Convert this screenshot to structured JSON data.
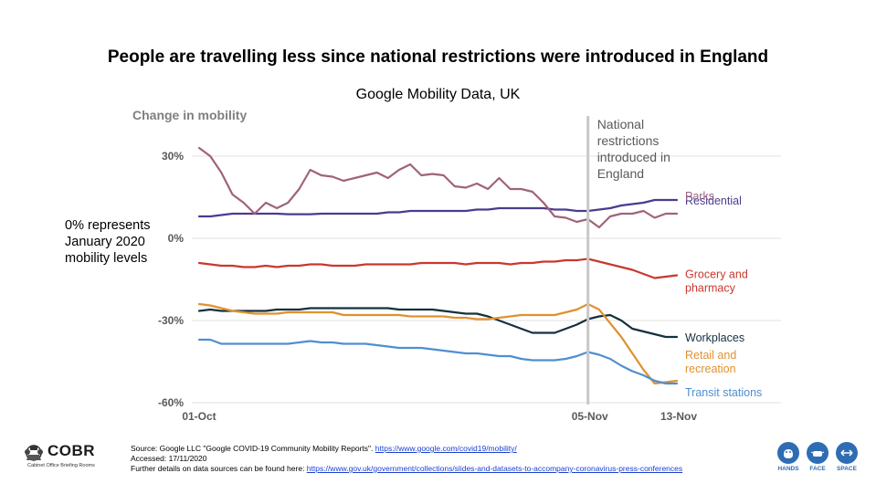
{
  "header": {
    "title": "People are travelling less since national restrictions were introduced in England",
    "subtitle": "Google Mobility Data, UK"
  },
  "side_note": {
    "line1": "0% represents",
    "line2": "January 2020",
    "line3": "mobility levels"
  },
  "chart_data": {
    "type": "line",
    "title": "Google Mobility Data, UK",
    "ylabel": "Change in mobility",
    "xlabel": "",
    "ylim": [
      -60,
      35
    ],
    "yticks": [
      30,
      0,
      -30,
      -60
    ],
    "ytick_labels": [
      "30%",
      "0%",
      "-30%",
      "-60%"
    ],
    "x_start_label": "01-Oct",
    "x_tick_labels": [
      {
        "day": 0,
        "label": "01-Oct"
      },
      {
        "day": 35,
        "label": "05-Nov"
      },
      {
        "day": 43,
        "label": "13-Nov"
      }
    ],
    "restriction_day": 35,
    "annotation": [
      "National",
      "restrictions",
      "introduced in",
      "England"
    ],
    "series": [
      {
        "name": "Residential",
        "label_lines": [
          "Residential"
        ],
        "color": "#4a3b8f",
        "values": [
          8,
          8,
          8.5,
          9,
          9,
          9,
          9,
          9,
          8.8,
          8.8,
          8.8,
          9,
          9,
          9,
          9,
          9,
          9,
          9.5,
          9.5,
          10,
          10,
          10,
          10,
          10,
          10,
          10.5,
          10.5,
          11,
          11,
          11,
          11,
          11,
          10.5,
          10.5,
          10,
          10,
          10.5,
          11,
          12,
          12.5,
          13,
          14,
          14,
          14
        ]
      },
      {
        "name": "Parks",
        "label_lines": [
          "Parks"
        ],
        "color": "#a0627c",
        "values": [
          33,
          30,
          24,
          16,
          13,
          9,
          13,
          11,
          13,
          18,
          25,
          23,
          22.5,
          21,
          22,
          23,
          24,
          22,
          25,
          27,
          23,
          23.5,
          23,
          19,
          18.5,
          20,
          18,
          22,
          18,
          18,
          17,
          13,
          8,
          7.5,
          6,
          7,
          4,
          8,
          9,
          9,
          10,
          7.5,
          9,
          9
        ]
      },
      {
        "name": "Grocery and pharmacy",
        "label_lines": [
          "Grocery and",
          "pharmacy"
        ],
        "color": "#c8382e",
        "values": [
          -9,
          -9.5,
          -10,
          -10,
          -10.5,
          -10.5,
          -10,
          -10.5,
          -10,
          -10,
          -9.5,
          -9.5,
          -10,
          -10,
          -10,
          -9.5,
          -9.5,
          -9.5,
          -9.5,
          -9.5,
          -9,
          -9,
          -9,
          -9,
          -9.5,
          -9,
          -9,
          -9,
          -9.5,
          -9,
          -9,
          -8.5,
          -8.5,
          -8,
          -8,
          -7.5,
          -8.5,
          -9.5,
          -10.5,
          -11.5,
          -13,
          -14.5,
          -14,
          -13.5
        ]
      },
      {
        "name": "Workplaces",
        "label_lines": [
          "Workplaces"
        ],
        "color": "#15303f",
        "values": [
          -26.5,
          -26,
          -26.5,
          -26.5,
          -26.5,
          -26.5,
          -26.5,
          -26,
          -26,
          -26,
          -25.5,
          -25.5,
          -25.5,
          -25.5,
          -25.5,
          -25.5,
          -25.5,
          -25.5,
          -26,
          -26,
          -26,
          -26,
          -26.5,
          -27,
          -27.5,
          -27.5,
          -28.5,
          -30,
          -31.5,
          -33,
          -34.5,
          -34.5,
          -34.5,
          -33,
          -31.5,
          -29.5,
          -28.5,
          -28,
          -30,
          -33,
          -34,
          -35,
          -36,
          -36
        ]
      },
      {
        "name": "Retail and recreation",
        "label_lines": [
          "Retail and",
          "recreation"
        ],
        "color": "#e0912f",
        "values": [
          -24,
          -24.5,
          -25.5,
          -26.5,
          -27,
          -27.5,
          -27.5,
          -27.5,
          -27,
          -27,
          -27,
          -27,
          -27,
          -28,
          -28,
          -28,
          -28,
          -28,
          -28,
          -28.5,
          -28.5,
          -28.5,
          -28.5,
          -29,
          -29,
          -29.5,
          -29.5,
          -29,
          -28.5,
          -28,
          -28,
          -28,
          -28,
          -27,
          -26,
          -24,
          -26,
          -31,
          -36,
          -42,
          -48,
          -53,
          -52.5,
          -52
        ]
      },
      {
        "name": "Transit stations",
        "label_lines": [
          "Transit stations"
        ],
        "color": "#4f8fd0",
        "values": [
          -37,
          -37,
          -38.5,
          -38.5,
          -38.5,
          -38.5,
          -38.5,
          -38.5,
          -38.5,
          -38,
          -37.5,
          -38,
          -38,
          -38.5,
          -38.5,
          -38.5,
          -39,
          -39.5,
          -40,
          -40,
          -40,
          -40.5,
          -41,
          -41.5,
          -42,
          -42,
          -42.5,
          -43,
          -43,
          -44,
          -44.5,
          -44.5,
          -44.5,
          -44,
          -43,
          -41.5,
          -42.5,
          -44,
          -46.5,
          -48.5,
          -50,
          -52,
          -53,
          -53
        ]
      }
    ]
  },
  "footer": {
    "source_prefix": "Source: Google LLC \"Google COVID-19 Community Mobility Reports\". ",
    "source_link": "https://www.google.com/covid19/mobility/",
    "accessed": "Accessed: 17/11/2020",
    "details_prefix": "Further details on data sources can be found here: ",
    "details_link": "https://www.gov.uk/government/collections/slides-and-datasets-to-accompany-coronavirus-press-conferences"
  },
  "branding": {
    "cobr_name": "COBR",
    "cobr_sub": "Cabinet Office Briefing Rooms",
    "hfs": [
      "HANDS",
      "FACE",
      "SPACE"
    ],
    "hfs_color": "#2e6db4"
  }
}
